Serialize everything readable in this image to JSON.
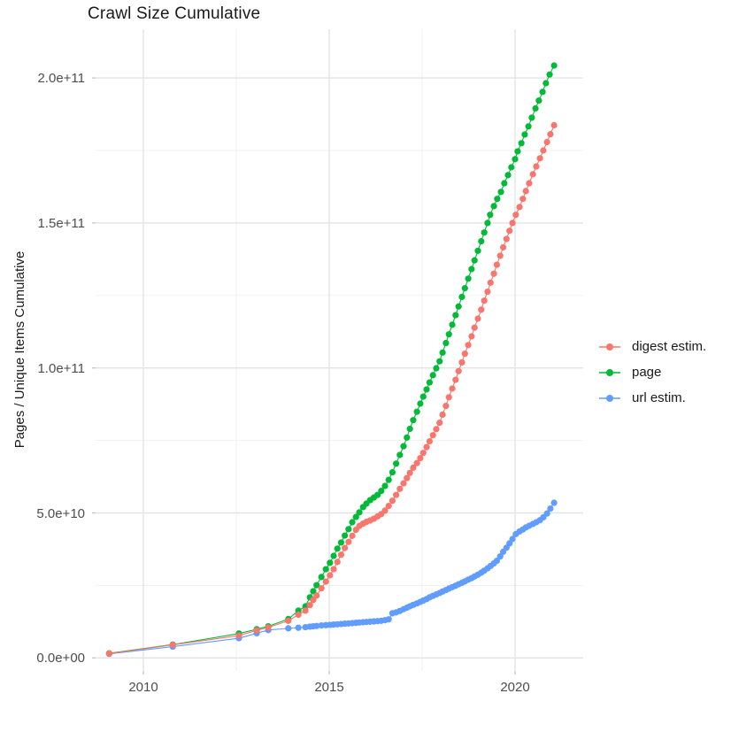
{
  "title": "Crawl Size Cumulative",
  "axes": {
    "y_title": "Pages / Unique Items Cumulative",
    "y_ticks": [
      {
        "value_billions": 0,
        "label": "0.0e+00"
      },
      {
        "value_billions": 50,
        "label": "5.0e+10"
      },
      {
        "value_billions": 100,
        "label": "1.0e+11"
      },
      {
        "value_billions": 150,
        "label": "1.5e+11"
      },
      {
        "value_billions": 200,
        "label": "2.0e+11"
      }
    ],
    "y_minor_billions": [
      25,
      75,
      125,
      175
    ],
    "x_ticks": [
      {
        "value_year": 2010,
        "label": "2010"
      },
      {
        "value_year": 2015,
        "label": "2015"
      },
      {
        "value_year": 2020,
        "label": "2020"
      }
    ],
    "x_minor_years": [
      2012.5,
      2017.5
    ]
  },
  "legend": [
    {
      "id": "digest",
      "label": "digest estim.",
      "color": "#F8766D"
    },
    {
      "id": "page",
      "label": "page",
      "color": "#00BA38"
    },
    {
      "id": "url",
      "label": "url estim.",
      "color": "#619CFF"
    }
  ],
  "chart_data": {
    "type": "scatter",
    "title": "Crawl Size Cumulative",
    "xlabel": "",
    "ylabel": "Pages / Unique Items Cumulative",
    "x_unit": "year",
    "y_unit": "items, in billions (1e9); axis shown in scientific notation",
    "xlim": [
      2008.7,
      2021.8
    ],
    "ylim_billions": [
      -4.5,
      217
    ],
    "grid": true,
    "legend_position": "right",
    "series": [
      {
        "name": "digest estim.",
        "color": "#F8766D",
        "points": [
          [
            2009.08,
            1.5
          ],
          [
            2010.79,
            4.5
          ],
          [
            2012.57,
            7.7
          ],
          [
            2013.05,
            9.5
          ],
          [
            2013.36,
            10.5
          ],
          [
            2013.9,
            12.8
          ],
          [
            2014.17,
            14.9
          ],
          [
            2014.36,
            16.3
          ],
          [
            2014.48,
            18.2
          ],
          [
            2014.57,
            20.0
          ],
          [
            2014.66,
            21.5
          ],
          [
            2014.79,
            24.0
          ],
          [
            2014.91,
            26.3
          ],
          [
            2015.02,
            28.5
          ],
          [
            2015.12,
            30.6
          ],
          [
            2015.22,
            33.1
          ],
          [
            2015.32,
            35.6
          ],
          [
            2015.42,
            37.9
          ],
          [
            2015.52,
            40.0
          ],
          [
            2015.62,
            42.1
          ],
          [
            2015.72,
            44.2
          ],
          [
            2015.81,
            45.5
          ],
          [
            2015.91,
            46.3
          ],
          [
            2016.0,
            46.9
          ],
          [
            2016.1,
            47.4
          ],
          [
            2016.2,
            48.0
          ],
          [
            2016.3,
            48.8
          ],
          [
            2016.4,
            49.6
          ],
          [
            2016.5,
            50.8
          ],
          [
            2016.6,
            52.4
          ],
          [
            2016.7,
            54.2
          ],
          [
            2016.8,
            56.2
          ],
          [
            2016.9,
            58.3
          ],
          [
            2017.0,
            60.2
          ],
          [
            2017.09,
            62.0
          ],
          [
            2017.17,
            63.8
          ],
          [
            2017.26,
            65.6
          ],
          [
            2017.36,
            67.2
          ],
          [
            2017.45,
            68.9
          ],
          [
            2017.53,
            70.7
          ],
          [
            2017.62,
            72.7
          ],
          [
            2017.7,
            74.7
          ],
          [
            2017.79,
            76.8
          ],
          [
            2017.88,
            78.9
          ],
          [
            2017.97,
            81.1
          ],
          [
            2018.05,
            83.9
          ],
          [
            2018.14,
            86.9
          ],
          [
            2018.22,
            89.9
          ],
          [
            2018.31,
            92.9
          ],
          [
            2018.4,
            95.9
          ],
          [
            2018.48,
            98.9
          ],
          [
            2018.57,
            101.9
          ],
          [
            2018.65,
            104.9
          ],
          [
            2018.74,
            107.9
          ],
          [
            2018.83,
            110.9
          ],
          [
            2018.91,
            113.9
          ],
          [
            2019.0,
            117.0
          ],
          [
            2019.09,
            120.1
          ],
          [
            2019.17,
            123.2
          ],
          [
            2019.26,
            126.3
          ],
          [
            2019.34,
            129.4
          ],
          [
            2019.43,
            132.5
          ],
          [
            2019.51,
            135.6
          ],
          [
            2019.6,
            138.7
          ],
          [
            2019.68,
            141.6
          ],
          [
            2019.77,
            144.5
          ],
          [
            2019.85,
            147.3
          ],
          [
            2019.93,
            150.0
          ],
          [
            2020.02,
            152.8
          ],
          [
            2020.12,
            155.5
          ],
          [
            2020.21,
            158.3
          ],
          [
            2020.29,
            161.0
          ],
          [
            2020.38,
            163.7
          ],
          [
            2020.48,
            166.8
          ],
          [
            2020.57,
            169.5
          ],
          [
            2020.67,
            172.3
          ],
          [
            2020.76,
            175.0
          ],
          [
            2020.86,
            177.9
          ],
          [
            2020.95,
            180.6
          ],
          [
            2021.05,
            183.7
          ]
        ]
      },
      {
        "name": "page",
        "color": "#00BA38",
        "points": [
          [
            2009.08,
            1.6
          ],
          [
            2010.79,
            4.6
          ],
          [
            2012.57,
            8.4
          ],
          [
            2013.05,
            9.9
          ],
          [
            2013.36,
            10.9
          ],
          [
            2013.9,
            13.4
          ],
          [
            2014.17,
            16.3
          ],
          [
            2014.36,
            17.8
          ],
          [
            2014.48,
            20.9
          ],
          [
            2014.57,
            23.0
          ],
          [
            2014.66,
            25.1
          ],
          [
            2014.79,
            27.9
          ],
          [
            2014.91,
            30.6
          ],
          [
            2015.02,
            32.8
          ],
          [
            2015.12,
            35.2
          ],
          [
            2015.22,
            37.7
          ],
          [
            2015.32,
            39.8
          ],
          [
            2015.42,
            42.2
          ],
          [
            2015.52,
            44.4
          ],
          [
            2015.62,
            46.8
          ],
          [
            2015.72,
            48.6
          ],
          [
            2015.81,
            50.2
          ],
          [
            2015.91,
            52.0
          ],
          [
            2016.0,
            53.2
          ],
          [
            2016.1,
            54.4
          ],
          [
            2016.2,
            55.3
          ],
          [
            2016.3,
            56.2
          ],
          [
            2016.4,
            57.6
          ],
          [
            2016.5,
            59.3
          ],
          [
            2016.6,
            61.4
          ],
          [
            2016.7,
            64.0
          ],
          [
            2016.8,
            67.0
          ],
          [
            2016.9,
            70.0
          ],
          [
            2017.0,
            73.0
          ],
          [
            2017.09,
            76.0
          ],
          [
            2017.17,
            79.0
          ],
          [
            2017.26,
            82.0
          ],
          [
            2017.36,
            84.9
          ],
          [
            2017.45,
            87.7
          ],
          [
            2017.53,
            90.1
          ],
          [
            2017.62,
            92.6
          ],
          [
            2017.7,
            95.0
          ],
          [
            2017.79,
            97.5
          ],
          [
            2017.88,
            99.9
          ],
          [
            2017.97,
            102.3
          ],
          [
            2018.05,
            105.3
          ],
          [
            2018.14,
            108.6
          ],
          [
            2018.22,
            111.6
          ],
          [
            2018.31,
            114.9
          ],
          [
            2018.4,
            118.2
          ],
          [
            2018.48,
            121.2
          ],
          [
            2018.57,
            124.5
          ],
          [
            2018.65,
            127.5
          ],
          [
            2018.74,
            130.8
          ],
          [
            2018.83,
            134.1
          ],
          [
            2018.91,
            137.1
          ],
          [
            2019.0,
            140.4
          ],
          [
            2019.09,
            143.7
          ],
          [
            2019.17,
            146.7
          ],
          [
            2019.26,
            150.0
          ],
          [
            2019.33,
            152.8
          ],
          [
            2019.43,
            155.8
          ],
          [
            2019.52,
            158.3
          ],
          [
            2019.62,
            160.7
          ],
          [
            2019.71,
            163.7
          ],
          [
            2019.81,
            166.5
          ],
          [
            2019.9,
            169.2
          ],
          [
            2020.0,
            172.0
          ],
          [
            2020.07,
            174.7
          ],
          [
            2020.17,
            177.5
          ],
          [
            2020.26,
            180.5
          ],
          [
            2020.36,
            183.3
          ],
          [
            2020.45,
            186.3
          ],
          [
            2020.55,
            189.5
          ],
          [
            2020.64,
            192.2
          ],
          [
            2020.74,
            195.2
          ],
          [
            2020.83,
            198.2
          ],
          [
            2020.93,
            201.2
          ],
          [
            2021.05,
            204.3
          ]
        ]
      },
      {
        "name": "url estim.",
        "color": "#619CFF",
        "points": [
          [
            2009.08,
            1.4
          ],
          [
            2010.79,
            3.9
          ],
          [
            2012.57,
            6.8
          ],
          [
            2013.05,
            8.5
          ],
          [
            2013.36,
            9.6
          ],
          [
            2013.9,
            10.2
          ],
          [
            2014.17,
            10.4
          ],
          [
            2014.36,
            10.6
          ],
          [
            2014.48,
            10.8
          ],
          [
            2014.57,
            10.9
          ],
          [
            2014.66,
            11.0
          ],
          [
            2014.79,
            11.2
          ],
          [
            2014.91,
            11.3
          ],
          [
            2015.02,
            11.4
          ],
          [
            2015.12,
            11.5
          ],
          [
            2015.22,
            11.6
          ],
          [
            2015.32,
            11.7
          ],
          [
            2015.42,
            11.8
          ],
          [
            2015.52,
            11.9
          ],
          [
            2015.62,
            12.0
          ],
          [
            2015.72,
            12.1
          ],
          [
            2015.81,
            12.2
          ],
          [
            2015.91,
            12.3
          ],
          [
            2016.0,
            12.4
          ],
          [
            2016.1,
            12.5
          ],
          [
            2016.2,
            12.6
          ],
          [
            2016.3,
            12.7
          ],
          [
            2016.4,
            12.8
          ],
          [
            2016.5,
            13.0
          ],
          [
            2016.6,
            13.3
          ],
          [
            2016.7,
            15.4
          ],
          [
            2016.8,
            15.7
          ],
          [
            2016.9,
            16.2
          ],
          [
            2017.0,
            16.8
          ],
          [
            2017.09,
            17.3
          ],
          [
            2017.17,
            17.8
          ],
          [
            2017.26,
            18.3
          ],
          [
            2017.36,
            18.8
          ],
          [
            2017.45,
            19.3
          ],
          [
            2017.53,
            19.8
          ],
          [
            2017.62,
            20.3
          ],
          [
            2017.7,
            20.9
          ],
          [
            2017.79,
            21.4
          ],
          [
            2017.88,
            21.9
          ],
          [
            2017.97,
            22.4
          ],
          [
            2018.05,
            22.9
          ],
          [
            2018.14,
            23.4
          ],
          [
            2018.22,
            23.9
          ],
          [
            2018.31,
            24.4
          ],
          [
            2018.4,
            24.9
          ],
          [
            2018.48,
            25.4
          ],
          [
            2018.57,
            25.9
          ],
          [
            2018.65,
            26.4
          ],
          [
            2018.74,
            27.0
          ],
          [
            2018.83,
            27.5
          ],
          [
            2018.91,
            28.1
          ],
          [
            2019.0,
            28.7
          ],
          [
            2019.09,
            29.4
          ],
          [
            2019.17,
            30.1
          ],
          [
            2019.26,
            30.9
          ],
          [
            2019.34,
            31.7
          ],
          [
            2019.43,
            32.6
          ],
          [
            2019.51,
            33.5
          ],
          [
            2019.6,
            35.0
          ],
          [
            2019.68,
            36.6
          ],
          [
            2019.77,
            38.0
          ],
          [
            2019.85,
            39.5
          ],
          [
            2019.93,
            41.0
          ],
          [
            2020.02,
            42.7
          ],
          [
            2020.12,
            43.6
          ],
          [
            2020.21,
            44.3
          ],
          [
            2020.29,
            45.0
          ],
          [
            2020.38,
            45.6
          ],
          [
            2020.48,
            46.2
          ],
          [
            2020.57,
            46.8
          ],
          [
            2020.67,
            47.5
          ],
          [
            2020.76,
            48.5
          ],
          [
            2020.86,
            49.8
          ],
          [
            2020.95,
            51.5
          ],
          [
            2021.05,
            53.5
          ]
        ]
      }
    ]
  }
}
